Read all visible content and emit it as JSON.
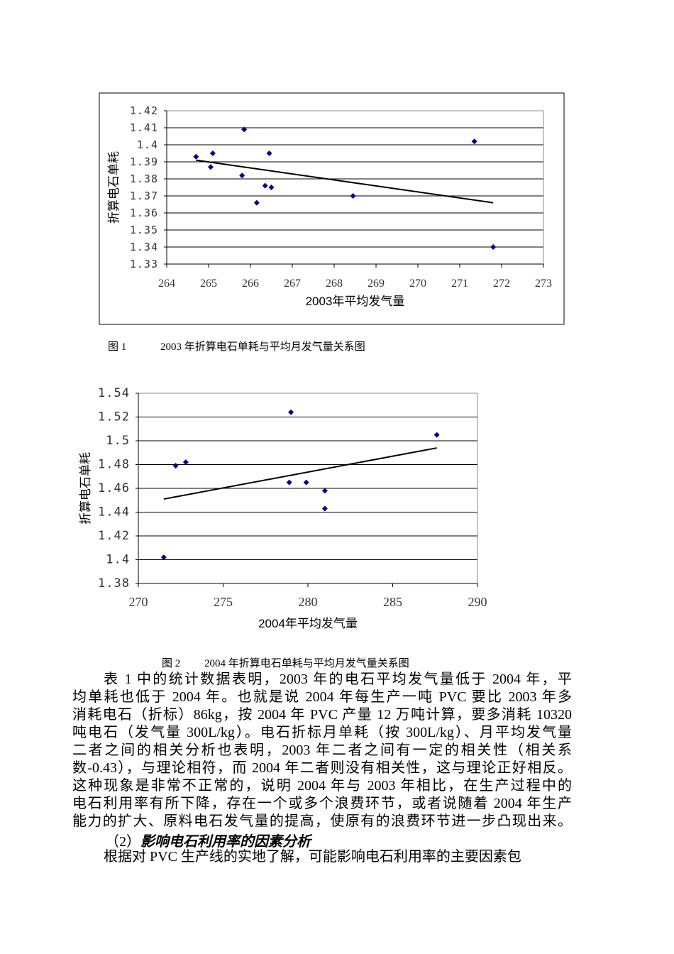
{
  "chart_data": [
    {
      "type": "scatter",
      "xlabel": "2003年平均发气量",
      "ylabel": "折算电石单耗",
      "xlim": [
        264,
        273
      ],
      "ylim": [
        1.33,
        1.42
      ],
      "xticks": [
        "264",
        "265",
        "266",
        "267",
        "268",
        "269",
        "270",
        "271",
        "272",
        "273"
      ],
      "yticks": [
        "1.42",
        "1.41",
        "1.4",
        "1.39",
        "1.38",
        "1.37",
        "1.36",
        "1.35",
        "1.34",
        "1.33"
      ],
      "grid": "horizontal",
      "marker_color": "#00008b",
      "points": [
        [
          264.7,
          1.393
        ],
        [
          265.1,
          1.395
        ],
        [
          265.05,
          1.387
        ],
        [
          265.8,
          1.382
        ],
        [
          265.85,
          1.409
        ],
        [
          266.15,
          1.366
        ],
        [
          266.35,
          1.376
        ],
        [
          266.45,
          1.395
        ],
        [
          266.5,
          1.375
        ],
        [
          268.45,
          1.37
        ],
        [
          271.35,
          1.402
        ],
        [
          271.8,
          1.34
        ]
      ],
      "trendline": [
        [
          264.7,
          1.391
        ],
        [
          271.8,
          1.366
        ]
      ]
    },
    {
      "type": "scatter",
      "xlabel": "2004年平均发气量",
      "ylabel": "折算电石单耗",
      "xlim": [
        270,
        290
      ],
      "ylim": [
        1.38,
        1.54
      ],
      "xticks": [
        "270",
        "275",
        "280",
        "285",
        "290"
      ],
      "yticks": [
        "1.54",
        "1.52",
        "1.5",
        "1.48",
        "1.46",
        "1.44",
        "1.42",
        "1.4",
        "1.38"
      ],
      "grid": "horizontal",
      "marker_color": "#00008b",
      "points": [
        [
          271.5,
          1.402
        ],
        [
          272.2,
          1.479
        ],
        [
          272.8,
          1.482
        ],
        [
          278.9,
          1.465
        ],
        [
          279.0,
          1.524
        ],
        [
          279.9,
          1.465
        ],
        [
          281.0,
          1.458
        ],
        [
          281.0,
          1.443
        ],
        [
          287.6,
          1.505
        ]
      ],
      "trendline": [
        [
          271.5,
          1.451
        ],
        [
          287.6,
          1.494
        ]
      ]
    }
  ],
  "captions": {
    "fig1_num": "图 1",
    "fig1_text": "2003 年折算电石单耗与平均月发气量关系图",
    "fig2_num": "图 2",
    "fig2_text": "2004 年折算电石单耗与平均月发气量关系图"
  },
  "body": {
    "para1": [
      "表 1 中的统计数据表明，2003 年的电石平均发气量低于 2004 年，平",
      "均单耗也低于 2004 年。也就是说 2004 年每生产一吨 PVC 要比 2003 年多",
      "消耗电石（折标）86kg，按 2004 年 PVC 产量 12 万吨计算，要多消耗 10320",
      "吨电石（发气量 300L/kg）。电石折标月单耗（按 300L/kg）、月平均发气量",
      "二者之间的相关分析也表明，2003 年二者之间有一定的相关性（相关系",
      "数-0.43），与理论相符，而 2004 年二者则没有相关性，这与理论正好相反。",
      "这种现象是非常不正常的，说明 2004 年与 2003 年相比，在生产过程中的",
      "电石利用率有所下降，存在一个或多个浪费环节，或者说随着 2004 年生产",
      "能力的扩大、原料电石发气量的提高，使原有的浪费环节进一步凸现出来。"
    ],
    "heading_num": "（2）",
    "heading_text": "影响电石利用率的因素分析",
    "para2": "根据对 PVC 生产线的实地了解，可能影响电石利用率的主要因素包"
  }
}
